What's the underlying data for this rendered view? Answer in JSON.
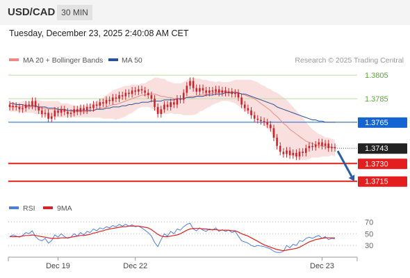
{
  "header": {
    "symbol": "USD/CAD",
    "timeframe": "30 MIN",
    "datetime": "Tuesday, December 23, 2025 2:40:08 AM CET"
  },
  "legend": {
    "ma20": "MA 20 + Bollinger Bands",
    "ma50": "MA 50",
    "credit": "Research © 2025 Trading Central",
    "rsi": "RSI",
    "rsi_ma": "9MA"
  },
  "colors": {
    "ma20": "#ef8a82",
    "ma50": "#2a5299",
    "bands": "#f9dcdc",
    "candle": "#c8242a",
    "green_level": "#5aa832",
    "support": "#e31e1e",
    "current": "#222222",
    "ma50_tag": "#1464d2",
    "arrow": "#2a5ca6",
    "rsi": "#4a7ee6",
    "rsi_ma": "#e31e1e"
  },
  "chart_data": {
    "type": "candlestick",
    "price_levels": [
      {
        "value": 1.3805,
        "label": "1.3805",
        "style": "green"
      },
      {
        "value": 1.3785,
        "label": "1.3785",
        "style": "green"
      },
      {
        "value": 1.3765,
        "label": "1.3765",
        "style": "ma50"
      },
      {
        "value": 1.3743,
        "label": "1.3743",
        "style": "current"
      },
      {
        "value": 1.373,
        "label": "1.3730",
        "style": "support"
      },
      {
        "value": 1.3715,
        "label": "1.3715",
        "style": "support"
      }
    ],
    "price_range": [
      1.3706,
      1.3808
    ],
    "close": [
      1.3778,
      1.3779,
      1.3778,
      1.3776,
      1.3777,
      1.378,
      1.3779,
      1.3783,
      1.3778,
      1.3775,
      1.3772,
      1.3773,
      1.3768,
      1.377,
      1.3775,
      1.3773,
      1.3776,
      1.3774,
      1.3772,
      1.3773,
      1.3776,
      1.3774,
      1.3777,
      1.3775,
      1.3778,
      1.3777,
      1.378,
      1.3779,
      1.3782,
      1.3781,
      1.3784,
      1.3783,
      1.3786,
      1.3785,
      1.3788,
      1.3787,
      1.379,
      1.3789,
      1.3792,
      1.3791,
      1.3793,
      1.3792,
      1.379,
      1.3788,
      1.3785,
      1.3778,
      1.3772,
      1.3776,
      1.378,
      1.3778,
      1.3782,
      1.378,
      1.3785,
      1.3784,
      1.379,
      1.3796,
      1.38,
      1.3794,
      1.3791,
      1.3794,
      1.3792,
      1.379,
      1.3792,
      1.3791,
      1.3793,
      1.379,
      1.3792,
      1.379,
      1.3791,
      1.3789,
      1.379,
      1.3786,
      1.378,
      1.3777,
      1.3775,
      1.3771,
      1.3768,
      1.3767,
      1.3766,
      1.3765,
      1.3763,
      1.376,
      1.3752,
      1.3745,
      1.374,
      1.3738,
      1.3741,
      1.3737,
      1.3739,
      1.3736,
      1.374,
      1.3739,
      1.3743,
      1.3745,
      1.3744,
      1.3746,
      1.3748,
      1.3745,
      1.3747,
      1.3743,
      1.3744,
      1.3743
    ],
    "ma20": [
      1.3778,
      1.3778,
      1.3778,
      1.3778,
      1.3778,
      1.3778,
      1.3778,
      1.3778,
      1.3778,
      1.3778,
      1.3777,
      1.3777,
      1.3776,
      1.3776,
      1.3776,
      1.3776,
      1.3775,
      1.3775,
      1.3775,
      1.3775,
      1.3774,
      1.3774,
      1.3774,
      1.3774,
      1.3774,
      1.3775,
      1.3775,
      1.3776,
      1.3777,
      1.3777,
      1.3778,
      1.3779,
      1.378,
      1.378,
      1.3781,
      1.3782,
      1.3783,
      1.3784,
      1.3785,
      1.3786,
      1.3787,
      1.3788,
      1.3788,
      1.3789,
      1.3789,
      1.3789,
      1.3788,
      1.3787,
      1.3787,
      1.3786,
      1.3786,
      1.3785,
      1.3785,
      1.3785,
      1.3785,
      1.3786,
      1.3787,
      1.3787,
      1.3787,
      1.3788,
      1.3788,
      1.3789,
      1.3789,
      1.379,
      1.379,
      1.3791,
      1.3791,
      1.3791,
      1.3791,
      1.3791,
      1.3791,
      1.379,
      1.3789,
      1.3788,
      1.3787,
      1.3786,
      1.3785,
      1.3783,
      1.3781,
      1.3779,
      1.3777,
      1.3775,
      1.3772,
      1.377,
      1.3767,
      1.3764,
      1.3762,
      1.3759,
      1.3757,
      1.3755,
      1.3753,
      1.3751,
      1.3749,
      1.3748,
      1.3747,
      1.3746,
      1.3745,
      1.3745,
      1.3744,
      1.3744,
      1.3744,
      1.3743
    ],
    "ma50": [
      1.3781,
      1.3781,
      1.378,
      1.378,
      1.378,
      1.3779,
      1.3779,
      1.3779,
      1.3779,
      1.3778,
      1.3778,
      1.3778,
      1.3777,
      1.3777,
      1.3777,
      1.3776,
      1.3776,
      1.3776,
      1.3775,
      1.3775,
      1.3775,
      1.3775,
      1.3775,
      1.3775,
      1.3775,
      1.3775,
      1.3775,
      1.3776,
      1.3776,
      1.3776,
      1.3777,
      1.3777,
      1.3778,
      1.3778,
      1.3778,
      1.3779,
      1.3779,
      1.378,
      1.378,
      1.3781,
      1.3781,
      1.3782,
      1.3782,
      1.3782,
      1.3783,
      1.3783,
      1.3783,
      1.3783,
      1.3784,
      1.3784,
      1.3784,
      1.3784,
      1.3785,
      1.3785,
      1.3785,
      1.3786,
      1.3786,
      1.3786,
      1.3787,
      1.3787,
      1.3787,
      1.3788,
      1.3788,
      1.3788,
      1.3789,
      1.3789,
      1.3789,
      1.379,
      1.379,
      1.379,
      1.379,
      1.379,
      1.3789,
      1.3789,
      1.3788,
      1.3787,
      1.3786,
      1.3785,
      1.3784,
      1.3783,
      1.3782,
      1.3781,
      1.378,
      1.3778,
      1.3777,
      1.3776,
      1.3775,
      1.3774,
      1.3773,
      1.3772,
      1.3771,
      1.377,
      1.3769,
      1.3768,
      1.3767,
      1.3767,
      1.3766,
      1.3766,
      1.3765,
      1.3765,
      1.3765,
      1.3765
    ],
    "band_width": [
      0.0004,
      0.0004,
      0.0004,
      0.0004,
      0.0005,
      0.0005,
      0.0005,
      0.0005,
      0.0006,
      0.0006,
      0.0006,
      0.0006,
      0.0007,
      0.0007,
      0.0007,
      0.0007,
      0.0006,
      0.0006,
      0.0006,
      0.0005,
      0.0005,
      0.0005,
      0.0005,
      0.0005,
      0.0005,
      0.0006,
      0.0006,
      0.0007,
      0.0008,
      0.0009,
      0.001,
      0.0011,
      0.0012,
      0.0013,
      0.0013,
      0.0013,
      0.0013,
      0.0012,
      0.0012,
      0.0011,
      0.001,
      0.001,
      0.001,
      0.0011,
      0.0012,
      0.0014,
      0.0015,
      0.0015,
      0.0015,
      0.0014,
      0.0013,
      0.0013,
      0.0013,
      0.0013,
      0.0014,
      0.0015,
      0.0016,
      0.0016,
      0.0015,
      0.0014,
      0.0013,
      0.0012,
      0.0011,
      0.001,
      0.0009,
      0.0009,
      0.0008,
      0.0008,
      0.0008,
      0.0009,
      0.001,
      0.0011,
      0.0012,
      0.0013,
      0.0014,
      0.0015,
      0.0015,
      0.0016,
      0.0016,
      0.0017,
      0.0017,
      0.0018,
      0.0019,
      0.002,
      0.0021,
      0.0022,
      0.0022,
      0.0022,
      0.0021,
      0.002,
      0.0019,
      0.0018,
      0.0016,
      0.0014,
      0.0012,
      0.0011,
      0.001,
      0.0009,
      0.0008,
      0.0008,
      0.0007,
      0.0007
    ],
    "rsi": [
      45,
      48,
      46,
      44,
      47,
      52,
      50,
      55,
      45,
      40,
      38,
      42,
      34,
      38,
      48,
      44,
      50,
      45,
      42,
      44,
      50,
      46,
      52,
      48,
      54,
      52,
      58,
      55,
      60,
      58,
      62,
      60,
      64,
      62,
      66,
      63,
      66,
      63,
      65,
      62,
      63,
      60,
      56,
      52,
      46,
      35,
      28,
      40,
      50,
      46,
      54,
      50,
      58,
      56,
      62,
      66,
      68,
      58,
      55,
      60,
      56,
      54,
      58,
      56,
      60,
      54,
      57,
      54,
      56,
      52,
      54,
      46,
      38,
      36,
      34,
      30,
      28,
      30,
      29,
      28,
      26,
      24,
      20,
      18,
      18,
      20,
      30,
      26,
      32,
      30,
      38,
      37,
      42,
      44,
      42,
      45,
      47,
      42,
      45,
      40,
      42,
      41
    ],
    "rsi_ma": [
      45,
      45,
      45,
      45,
      46,
      47,
      47,
      48,
      47,
      46,
      45,
      44,
      43,
      42,
      42,
      42,
      43,
      43,
      43,
      44,
      45,
      46,
      47,
      47,
      48,
      49,
      51,
      52,
      54,
      55,
      57,
      58,
      59,
      60,
      61,
      62,
      62,
      63,
      63,
      63,
      63,
      62,
      61,
      60,
      57,
      53,
      49,
      46,
      45,
      45,
      46,
      47,
      48,
      50,
      53,
      56,
      58,
      59,
      59,
      59,
      58,
      58,
      57,
      57,
      57,
      56,
      56,
      56,
      56,
      55,
      55,
      53,
      50,
      48,
      46,
      43,
      40,
      37,
      34,
      31,
      29,
      27,
      25,
      23,
      22,
      21,
      22,
      23,
      24,
      25,
      27,
      30,
      33,
      36,
      38,
      40,
      41,
      42,
      43,
      43,
      43,
      43
    ],
    "rsi_levels": [
      70,
      50,
      30
    ],
    "x_labels": [
      {
        "index": 15,
        "label": "Dec 19"
      },
      {
        "index": 39,
        "label": "Dec 22"
      },
      {
        "index": 97,
        "label": "Dec 23"
      }
    ],
    "projection": {
      "from": 1.3743,
      "to": 1.3715,
      "bars_ahead": 6
    }
  }
}
